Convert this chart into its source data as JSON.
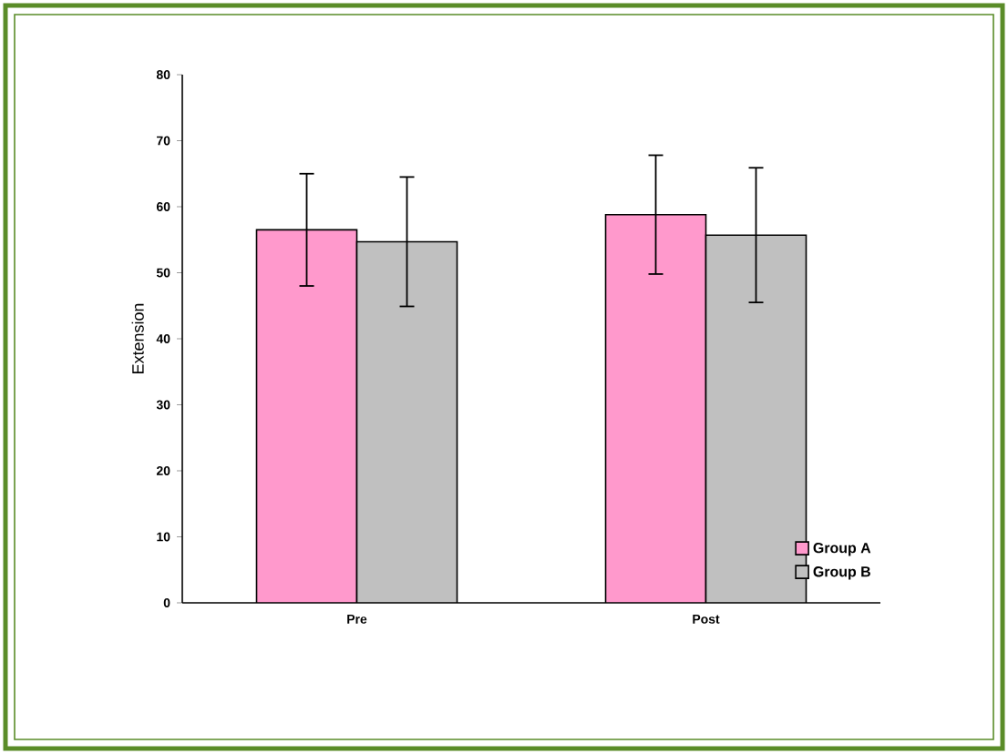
{
  "chart_data": {
    "type": "bar",
    "ylabel": "Extension",
    "categories": [
      "Pre",
      "Post"
    ],
    "series": [
      {
        "name": "Group A",
        "color": "#ff99cc",
        "values": [
          56.5,
          58.8
        ],
        "errors": [
          8.5,
          9
        ]
      },
      {
        "name": "Group B",
        "color": "#c0c0c0",
        "values": [
          54.7,
          55.7
        ],
        "errors": [
          9.8,
          10.2
        ]
      }
    ],
    "ylim": [
      0,
      80
    ],
    "yticks": [
      0,
      10,
      20,
      30,
      40,
      50,
      60,
      70,
      80
    ],
    "grid": false,
    "legend": "bottom right"
  }
}
